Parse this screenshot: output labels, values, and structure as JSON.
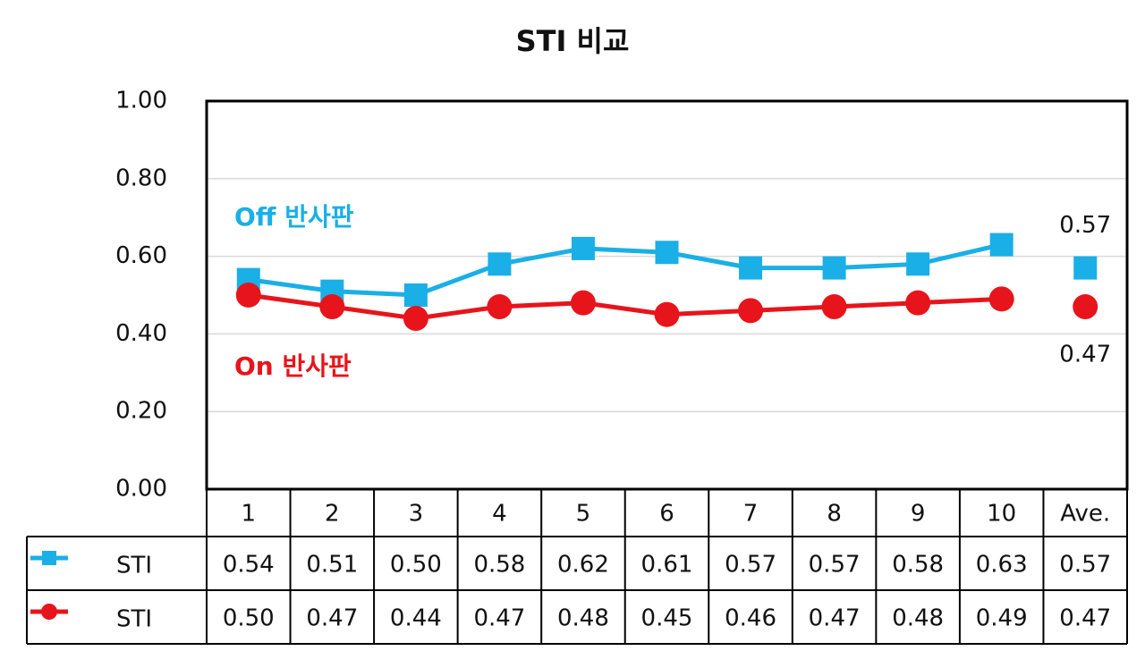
{
  "chart_data": {
    "type": "line",
    "title": "STI 비교",
    "categories": [
      "1",
      "2",
      "3",
      "4",
      "5",
      "6",
      "7",
      "8",
      "9",
      "10",
      "Ave."
    ],
    "series": [
      {
        "name": "STI",
        "color": "#1aafe6",
        "marker": "square",
        "values": [
          0.54,
          0.51,
          0.5,
          0.58,
          0.62,
          0.61,
          0.57,
          0.57,
          0.58,
          0.63,
          0.57
        ],
        "value_labels": [
          "0.54",
          "0.51",
          "0.50",
          "0.58",
          "0.62",
          "0.61",
          "0.57",
          "0.57",
          "0.58",
          "0.63",
          "0.57"
        ]
      },
      {
        "name": "STI",
        "color": "#e8141b",
        "marker": "circle",
        "values": [
          0.5,
          0.47,
          0.44,
          0.47,
          0.48,
          0.45,
          0.46,
          0.47,
          0.48,
          0.49,
          0.47
        ],
        "value_labels": [
          "0.50",
          "0.47",
          "0.44",
          "0.47",
          "0.48",
          "0.45",
          "0.46",
          "0.47",
          "0.48",
          "0.49",
          "0.47"
        ]
      }
    ],
    "annotations": [
      "Off 반사판",
      "On 반사판"
    ],
    "ylim": [
      0,
      1
    ],
    "yticks": [
      {
        "value": 0,
        "label": "0.00"
      },
      {
        "value": 0.2,
        "label": "0.20"
      },
      {
        "value": 0.4,
        "label": "0.40"
      },
      {
        "value": 0.6,
        "label": "0.60"
      },
      {
        "value": 0.8,
        "label": "0.80"
      },
      {
        "value": 1,
        "label": "1.00"
      }
    ],
    "grid": true
  }
}
